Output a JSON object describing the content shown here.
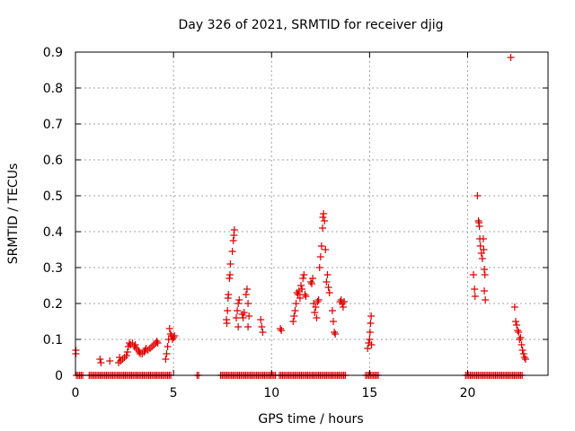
{
  "chart_data": {
    "type": "scatter",
    "title": "Day 326 of 2021, SRMTID for receiver djig",
    "xlabel": "GPS time / hours",
    "ylabel": "SRMTID / TECUs",
    "xlim": [
      0,
      24.1
    ],
    "ylim": [
      0,
      0.9
    ],
    "x_ticks": [
      0,
      5,
      10,
      15,
      20
    ],
    "x_tick_labels": [
      "0",
      "5",
      "10",
      "15",
      "20"
    ],
    "y_ticks": [
      0,
      0.1,
      0.2,
      0.3,
      0.4,
      0.5,
      0.6,
      0.7,
      0.8,
      0.9
    ],
    "y_tick_labels": [
      "0",
      "0.1",
      "0.2",
      "0.3",
      "0.4",
      "0.5",
      "0.6",
      "0.7",
      "0.8",
      "0.9"
    ],
    "grid": true,
    "marker": "+",
    "marker_color": "#e00000",
    "zero_segments": [
      [
        0.05,
        0.4
      ],
      [
        0.7,
        4.9
      ],
      [
        6.2,
        6.3
      ],
      [
        7.4,
        10.2
      ],
      [
        10.4,
        13.8
      ],
      [
        14.8,
        15.5
      ],
      [
        19.9,
        22.8
      ]
    ],
    "series": [
      {
        "name": "SRMTID",
        "points": [
          [
            0.02,
            0.07
          ],
          [
            0.02,
            0.06
          ],
          [
            1.25,
            0.045
          ],
          [
            1.3,
            0.035
          ],
          [
            1.75,
            0.04
          ],
          [
            2.2,
            0.035
          ],
          [
            2.25,
            0.05
          ],
          [
            2.3,
            0.04
          ],
          [
            2.4,
            0.045
          ],
          [
            2.5,
            0.05
          ],
          [
            2.6,
            0.055
          ],
          [
            2.65,
            0.065
          ],
          [
            2.7,
            0.08
          ],
          [
            2.75,
            0.09
          ],
          [
            2.8,
            0.085
          ],
          [
            2.9,
            0.09
          ],
          [
            3.0,
            0.08
          ],
          [
            3.05,
            0.085
          ],
          [
            3.1,
            0.075
          ],
          [
            3.2,
            0.07
          ],
          [
            3.25,
            0.065
          ],
          [
            3.3,
            0.06
          ],
          [
            3.4,
            0.06
          ],
          [
            3.5,
            0.065
          ],
          [
            3.55,
            0.07
          ],
          [
            3.6,
            0.075
          ],
          [
            3.7,
            0.07
          ],
          [
            3.8,
            0.075
          ],
          [
            3.9,
            0.08
          ],
          [
            4.0,
            0.085
          ],
          [
            4.1,
            0.09
          ],
          [
            4.15,
            0.095
          ],
          [
            4.2,
            0.09
          ],
          [
            4.6,
            0.045
          ],
          [
            4.65,
            0.06
          ],
          [
            4.7,
            0.08
          ],
          [
            4.75,
            0.1
          ],
          [
            4.8,
            0.13
          ],
          [
            4.85,
            0.115
          ],
          [
            4.9,
            0.11
          ],
          [
            4.95,
            0.1
          ],
          [
            5.0,
            0.105
          ],
          [
            5.05,
            0.11
          ],
          [
            7.7,
            0.155
          ],
          [
            7.72,
            0.145
          ],
          [
            7.75,
            0.18
          ],
          [
            7.78,
            0.215
          ],
          [
            7.8,
            0.225
          ],
          [
            7.85,
            0.27
          ],
          [
            7.88,
            0.28
          ],
          [
            7.9,
            0.31
          ],
          [
            8.0,
            0.345
          ],
          [
            8.05,
            0.375
          ],
          [
            8.08,
            0.39
          ],
          [
            8.1,
            0.405
          ],
          [
            8.2,
            0.16
          ],
          [
            8.25,
            0.18
          ],
          [
            8.3,
            0.2
          ],
          [
            8.35,
            0.21
          ],
          [
            8.3,
            0.135
          ],
          [
            8.5,
            0.17
          ],
          [
            8.55,
            0.16
          ],
          [
            8.6,
            0.175
          ],
          [
            8.7,
            0.225
          ],
          [
            8.75,
            0.24
          ],
          [
            8.8,
            0.2
          ],
          [
            8.85,
            0.165
          ],
          [
            8.8,
            0.135
          ],
          [
            9.45,
            0.155
          ],
          [
            9.5,
            0.135
          ],
          [
            9.55,
            0.12
          ],
          [
            10.45,
            0.13
          ],
          [
            10.5,
            0.125
          ],
          [
            11.1,
            0.15
          ],
          [
            11.15,
            0.165
          ],
          [
            11.2,
            0.18
          ],
          [
            11.25,
            0.2
          ],
          [
            11.3,
            0.23
          ],
          [
            11.35,
            0.225
          ],
          [
            11.4,
            0.235
          ],
          [
            11.45,
            0.215
          ],
          [
            11.5,
            0.25
          ],
          [
            11.55,
            0.24
          ],
          [
            11.6,
            0.27
          ],
          [
            11.65,
            0.28
          ],
          [
            11.7,
            0.225
          ],
          [
            11.75,
            0.22
          ],
          [
            12.0,
            0.26
          ],
          [
            12.05,
            0.255
          ],
          [
            12.1,
            0.27
          ],
          [
            12.15,
            0.2
          ],
          [
            12.2,
            0.175
          ],
          [
            12.25,
            0.19
          ],
          [
            12.3,
            0.16
          ],
          [
            12.35,
            0.205
          ],
          [
            12.4,
            0.21
          ],
          [
            12.45,
            0.3
          ],
          [
            12.5,
            0.33
          ],
          [
            12.55,
            0.36
          ],
          [
            12.6,
            0.41
          ],
          [
            12.62,
            0.44
          ],
          [
            12.65,
            0.45
          ],
          [
            12.7,
            0.43
          ],
          [
            12.75,
            0.35
          ],
          [
            12.8,
            0.26
          ],
          [
            12.85,
            0.28
          ],
          [
            12.9,
            0.245
          ],
          [
            12.95,
            0.23
          ],
          [
            13.1,
            0.18
          ],
          [
            13.15,
            0.15
          ],
          [
            13.2,
            0.12
          ],
          [
            13.25,
            0.115
          ],
          [
            13.5,
            0.205
          ],
          [
            13.55,
            0.21
          ],
          [
            13.6,
            0.2
          ],
          [
            13.65,
            0.19
          ],
          [
            13.7,
            0.205
          ],
          [
            14.9,
            0.075
          ],
          [
            14.95,
            0.09
          ],
          [
            15.0,
            0.1
          ],
          [
            15.02,
            0.12
          ],
          [
            15.05,
            0.145
          ],
          [
            15.08,
            0.165
          ],
          [
            15.1,
            0.085
          ],
          [
            20.3,
            0.28
          ],
          [
            20.35,
            0.24
          ],
          [
            20.38,
            0.22
          ],
          [
            20.5,
            0.5
          ],
          [
            20.55,
            0.43
          ],
          [
            20.58,
            0.425
          ],
          [
            20.6,
            0.415
          ],
          [
            20.62,
            0.38
          ],
          [
            20.65,
            0.36
          ],
          [
            20.7,
            0.34
          ],
          [
            20.75,
            0.325
          ],
          [
            20.8,
            0.38
          ],
          [
            20.82,
            0.35
          ],
          [
            20.85,
            0.295
          ],
          [
            20.88,
            0.28
          ],
          [
            20.9,
            0.21
          ],
          [
            20.85,
            0.235
          ],
          [
            22.2,
            0.885
          ],
          [
            22.4,
            0.19
          ],
          [
            22.45,
            0.15
          ],
          [
            22.5,
            0.14
          ],
          [
            22.55,
            0.125
          ],
          [
            22.6,
            0.12
          ],
          [
            22.65,
            0.1
          ],
          [
            22.7,
            0.105
          ],
          [
            22.75,
            0.085
          ],
          [
            22.8,
            0.07
          ],
          [
            22.85,
            0.06
          ],
          [
            22.9,
            0.05
          ],
          [
            22.95,
            0.045
          ]
        ]
      }
    ]
  }
}
